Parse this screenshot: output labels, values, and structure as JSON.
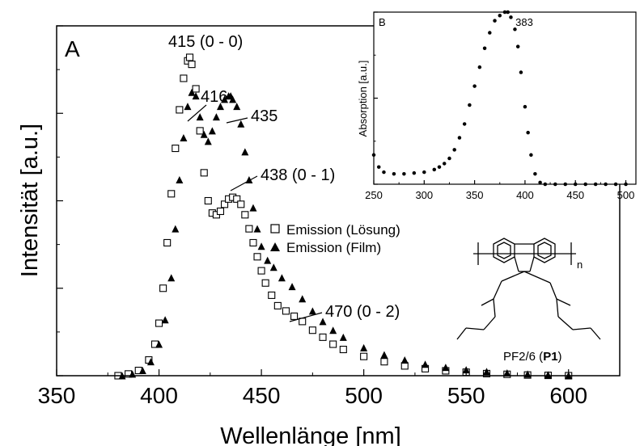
{
  "chart_data": [
    {
      "type": "scatter",
      "panel": "A",
      "xlabel": "Wellenlänge [nm]",
      "ylabel": "Intensität [a.u.]",
      "xlim": [
        350,
        625
      ],
      "ylim": [
        0,
        1.0
      ],
      "xticks": [
        350,
        400,
        450,
        500,
        550,
        600
      ],
      "y_tick_labels_shown": false,
      "grid": false,
      "legend_position": "center-right",
      "series": [
        {
          "name": "Emission (Lösung)",
          "marker": "open-square",
          "color": "#000000",
          "x": [
            380,
            385,
            390,
            395,
            398,
            400,
            402,
            404,
            406,
            408,
            410,
            412,
            414,
            415,
            416,
            418,
            420,
            422,
            424,
            426,
            428,
            430,
            432,
            434,
            436,
            438,
            440,
            442,
            444,
            446,
            448,
            450,
            452,
            455,
            458,
            462,
            466,
            470,
            475,
            480,
            485,
            490,
            500,
            510,
            520,
            530,
            540,
            550,
            560,
            570,
            580,
            590,
            600
          ],
          "y": [
            0.0,
            0.005,
            0.015,
            0.045,
            0.09,
            0.15,
            0.25,
            0.38,
            0.52,
            0.65,
            0.76,
            0.85,
            0.9,
            0.91,
            0.89,
            0.82,
            0.7,
            0.58,
            0.5,
            0.465,
            0.46,
            0.47,
            0.49,
            0.505,
            0.51,
            0.505,
            0.49,
            0.46,
            0.42,
            0.38,
            0.34,
            0.3,
            0.265,
            0.23,
            0.2,
            0.185,
            0.17,
            0.155,
            0.13,
            0.11,
            0.09,
            0.075,
            0.055,
            0.04,
            0.028,
            0.02,
            0.014,
            0.01,
            0.006,
            0.004,
            0.002,
            0.001,
            0.0
          ]
        },
        {
          "name": "Emission (Film)",
          "marker": "filled-triangle",
          "color": "#000000",
          "x": [
            382,
            387,
            392,
            396,
            400,
            403,
            406,
            408,
            410,
            412,
            414,
            416,
            418,
            420,
            422,
            424,
            426,
            428,
            430,
            432,
            434,
            435,
            436,
            438,
            440,
            442,
            444,
            446,
            448,
            450,
            453,
            456,
            460,
            465,
            470,
            475,
            480,
            485,
            490,
            500,
            510,
            520,
            530,
            540,
            550,
            560,
            570,
            580,
            590,
            600
          ],
          "y": [
            0.0,
            0.005,
            0.015,
            0.04,
            0.09,
            0.16,
            0.28,
            0.42,
            0.56,
            0.68,
            0.77,
            0.81,
            0.8,
            0.74,
            0.69,
            0.67,
            0.7,
            0.74,
            0.77,
            0.79,
            0.8,
            0.8,
            0.79,
            0.77,
            0.72,
            0.64,
            0.56,
            0.48,
            0.42,
            0.37,
            0.33,
            0.31,
            0.28,
            0.255,
            0.22,
            0.185,
            0.155,
            0.13,
            0.11,
            0.08,
            0.06,
            0.045,
            0.033,
            0.024,
            0.017,
            0.012,
            0.008,
            0.005,
            0.003,
            0.001
          ]
        }
      ],
      "annotations": [
        {
          "text": "415 (0 - 0)"
        },
        {
          "text": "416"
        },
        {
          "text": "435"
        },
        {
          "text": "438 (0 - 1)"
        },
        {
          "text": "470 (0 - 2)"
        }
      ],
      "structure_caption": {
        "prefix": "PF2/6 (",
        "bold": "P1",
        "suffix": ")",
        "subscript": "n"
      }
    },
    {
      "type": "scatter",
      "panel": "B",
      "inset": true,
      "ylabel": "Absorption [a.u.]",
      "xlim": [
        250,
        510
      ],
      "ylim": [
        0,
        1.0
      ],
      "xticks": [
        250,
        300,
        350,
        400,
        450,
        500
      ],
      "y_tick_labels_shown": false,
      "grid": false,
      "series": [
        {
          "name": "",
          "marker": "filled-circle",
          "color": "#000000",
          "x": [
            250,
            255,
            260,
            270,
            280,
            290,
            300,
            310,
            315,
            320,
            325,
            330,
            335,
            340,
            345,
            350,
            355,
            360,
            365,
            370,
            375,
            380,
            383,
            386,
            390,
            393,
            396,
            400,
            403,
            406,
            410,
            415,
            420,
            430,
            440,
            450,
            460,
            470,
            480,
            490,
            500
          ],
          "y": [
            0.17,
            0.1,
            0.07,
            0.06,
            0.06,
            0.065,
            0.07,
            0.085,
            0.1,
            0.12,
            0.15,
            0.2,
            0.27,
            0.35,
            0.46,
            0.57,
            0.68,
            0.79,
            0.88,
            0.95,
            0.98,
            1.0,
            1.0,
            0.97,
            0.9,
            0.8,
            0.65,
            0.45,
            0.3,
            0.17,
            0.06,
            0.01,
            0.0,
            0.0,
            0.0,
            0.0,
            0.0,
            0.0,
            0.0,
            0.0,
            0.0
          ]
        }
      ],
      "annotations": [
        {
          "text": "383"
        }
      ]
    }
  ]
}
